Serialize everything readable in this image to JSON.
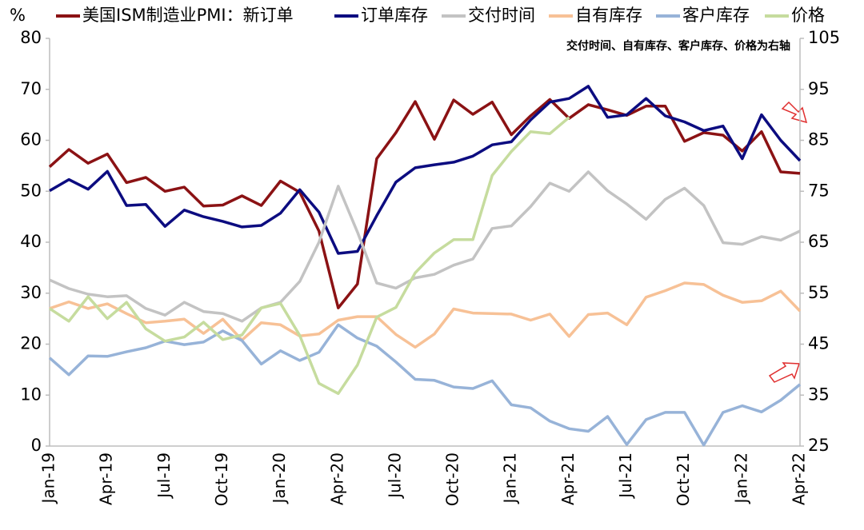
{
  "chart_data": {
    "type": "line",
    "y_label": "%",
    "annotation": "交付时间、自有库存、客户库存、价格为右轴",
    "legend": "top",
    "categories": [
      "Jan-19",
      null,
      null,
      "Apr-19",
      null,
      null,
      "Jul-19",
      null,
      null,
      "Oct-19",
      null,
      null,
      "Jan-20",
      null,
      null,
      "Apr-20",
      null,
      null,
      "Jul-20",
      null,
      null,
      "Oct-20",
      null,
      null,
      "Jan-21",
      null,
      null,
      "Apr-21",
      null,
      null,
      "Jul-21",
      null,
      null,
      "Oct-21",
      null,
      null,
      "Jan-22",
      null,
      null,
      "Apr-22"
    ],
    "ylim": [
      0,
      80
    ],
    "yticks": [
      0,
      10,
      20,
      30,
      40,
      50,
      60,
      70,
      80
    ],
    "y2lim": [
      25,
      105
    ],
    "y2ticks": [
      25,
      35,
      45,
      55,
      65,
      75,
      85,
      95,
      105
    ],
    "series": [
      {
        "name": "美国ISM制造业PMI：新订单",
        "color": "#8b1214",
        "values": [
          54.8,
          58.2,
          55.5,
          57.3,
          51.7,
          52.7,
          50.0,
          50.8,
          47.1,
          47.3,
          49.1,
          47.2,
          52.0,
          49.8,
          42.2,
          27.1,
          31.8,
          56.4,
          61.5,
          67.6,
          60.2,
          67.9,
          65.1,
          67.5,
          61.1,
          64.8,
          68.0,
          64.3,
          67.0,
          66.0,
          64.9,
          66.7,
          66.7,
          59.8,
          61.5,
          61.0,
          57.9,
          61.7,
          53.8,
          53.5
        ]
      },
      {
        "name": "订单库存",
        "color": "#0c0c80",
        "values": [
          50.1,
          52.3,
          50.4,
          53.9,
          47.2,
          47.4,
          43.1,
          46.3,
          45.0,
          44.1,
          43.0,
          43.3,
          45.7,
          50.3,
          45.9,
          37.8,
          38.2,
          45.2,
          51.8,
          54.6,
          55.2,
          55.7,
          56.9,
          59.1,
          59.7,
          64.0,
          67.5,
          68.2,
          70.6,
          64.5,
          65.0,
          68.2,
          64.8,
          63.6,
          61.9,
          62.8,
          56.4,
          65.0,
          60.0,
          56.0
        ]
      },
      {
        "name": "交付时间",
        "color": "#c3c3c3",
        "axis": "y2",
        "values": [
          57.6,
          55.9,
          54.8,
          54.3,
          54.5,
          52.0,
          50.7,
          53.2,
          51.4,
          51.0,
          49.5,
          52.1,
          53.2,
          57.3,
          65.0,
          76.0,
          67.0,
          57.0,
          56.0,
          58.0,
          58.7,
          60.5,
          61.7,
          67.7,
          68.2,
          72.0,
          76.6,
          75.0,
          78.8,
          75.1,
          72.5,
          69.5,
          73.4,
          75.6,
          72.2,
          64.9,
          64.6,
          66.1,
          65.4,
          67.2
        ]
      },
      {
        "name": "自有库存",
        "color": "#f7c196",
        "axis": "y2",
        "values": [
          52.0,
          53.3,
          52.0,
          52.9,
          51.0,
          49.2,
          49.5,
          49.9,
          47.1,
          49.9,
          45.8,
          49.2,
          48.8,
          46.6,
          47.0,
          49.7,
          50.4,
          50.4,
          46.9,
          44.4,
          47.0,
          51.9,
          51.1,
          51.0,
          50.9,
          49.7,
          50.9,
          46.5,
          50.8,
          51.1,
          48.8,
          54.2,
          55.5,
          57.0,
          56.7,
          54.6,
          53.2,
          53.5,
          55.4,
          51.5
        ]
      },
      {
        "name": "客户库存",
        "color": "#97b3d8",
        "axis": "y2",
        "values": [
          42.3,
          39.0,
          42.7,
          42.6,
          43.5,
          44.3,
          45.6,
          44.9,
          45.4,
          47.6,
          45.7,
          41.1,
          43.7,
          41.8,
          43.4,
          48.8,
          46.2,
          44.6,
          41.5,
          38.1,
          37.9,
          36.6,
          36.3,
          37.8,
          33.1,
          32.5,
          29.9,
          28.4,
          27.9,
          30.8,
          25.3,
          30.2,
          31.6,
          31.6,
          25.2,
          31.6,
          32.9,
          31.7,
          34.0,
          37.1
        ]
      },
      {
        "name": "价格",
        "color": "#c6dc9e",
        "axis": "y2",
        "values": [
          52.0,
          49.5,
          54.3,
          50.0,
          53.2,
          48.0,
          45.6,
          46.4,
          49.3,
          45.9,
          46.8,
          52.1,
          53.0,
          46.7,
          37.3,
          35.3,
          40.9,
          50.3,
          52.2,
          59.0,
          62.9,
          65.5,
          65.5,
          78.1,
          82.8,
          86.7,
          86.3,
          89.5,
          null,
          null,
          null,
          null,
          null,
          null,
          null,
          null,
          null,
          null,
          null,
          null
        ]
      }
    ]
  }
}
